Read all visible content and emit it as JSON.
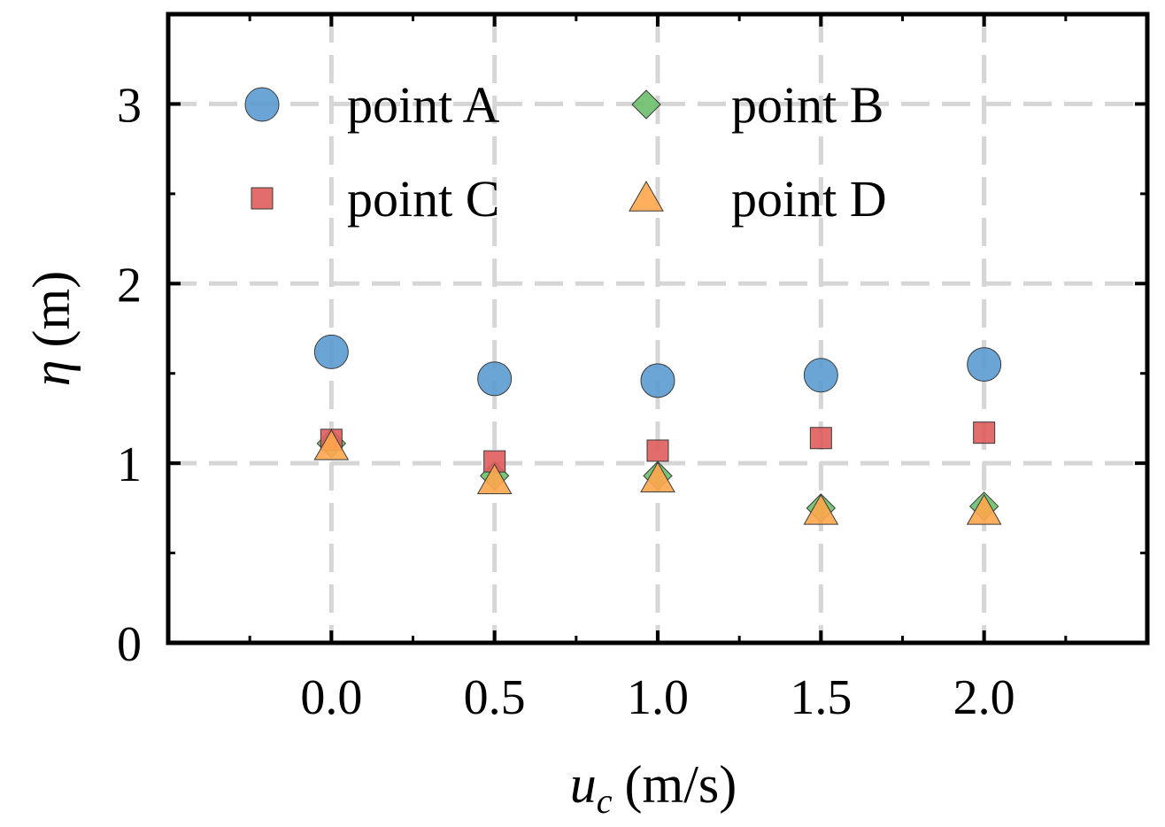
{
  "chart_data": {
    "type": "scatter",
    "title": "",
    "xlabel_main": "u",
    "xlabel_sub": "c",
    "xlabel_unit": "(m/s)",
    "ylabel_main": "η",
    "ylabel_unit": "(m)",
    "xlim": [
      -0.5,
      2.5
    ],
    "ylim": [
      0,
      3.5
    ],
    "xticks": [
      "0.0",
      "0.5",
      "1.0",
      "1.5",
      "2.0"
    ],
    "xtick_values": [
      0.0,
      0.5,
      1.0,
      1.5,
      2.0
    ],
    "yticks": [
      "0",
      "1",
      "2",
      "3"
    ],
    "ytick_values": [
      0,
      1,
      2,
      3
    ],
    "grid": true,
    "legend_position": "top",
    "x": [
      0.0,
      0.5,
      1.0,
      1.5,
      2.0
    ],
    "series": [
      {
        "name": "point A",
        "marker": "circle",
        "color": "#5b9bd0",
        "values": [
          1.62,
          1.47,
          1.46,
          1.49,
          1.55
        ]
      },
      {
        "name": "point B",
        "marker": "diamond",
        "color": "#6cbf6c",
        "values": [
          1.11,
          0.93,
          0.93,
          0.75,
          0.76
        ]
      },
      {
        "name": "point C",
        "marker": "square",
        "color": "#e05c5c",
        "values": [
          1.13,
          1.01,
          1.07,
          1.14,
          1.17
        ]
      },
      {
        "name": "point D",
        "marker": "triangle",
        "color": "#ffa64d",
        "values": [
          1.09,
          0.9,
          0.91,
          0.73,
          0.73
        ]
      }
    ]
  }
}
